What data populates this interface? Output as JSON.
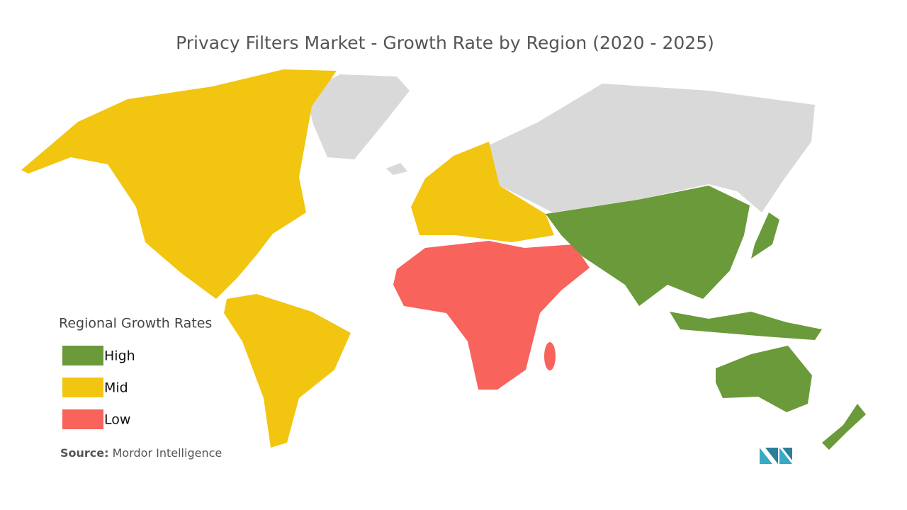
{
  "title": "Privacy Filters Market  - Growth Rate by Region (2020 - 2025)",
  "legend": {
    "title": "Regional Growth Rates",
    "items": [
      {
        "label": "High",
        "color": "#6a9a3a"
      },
      {
        "label": "Mid",
        "color": "#f2c511"
      },
      {
        "label": "Low",
        "color": "#f8635b"
      }
    ]
  },
  "source": {
    "label": "Source:",
    "text": "Mordor Intelligence"
  }
}
